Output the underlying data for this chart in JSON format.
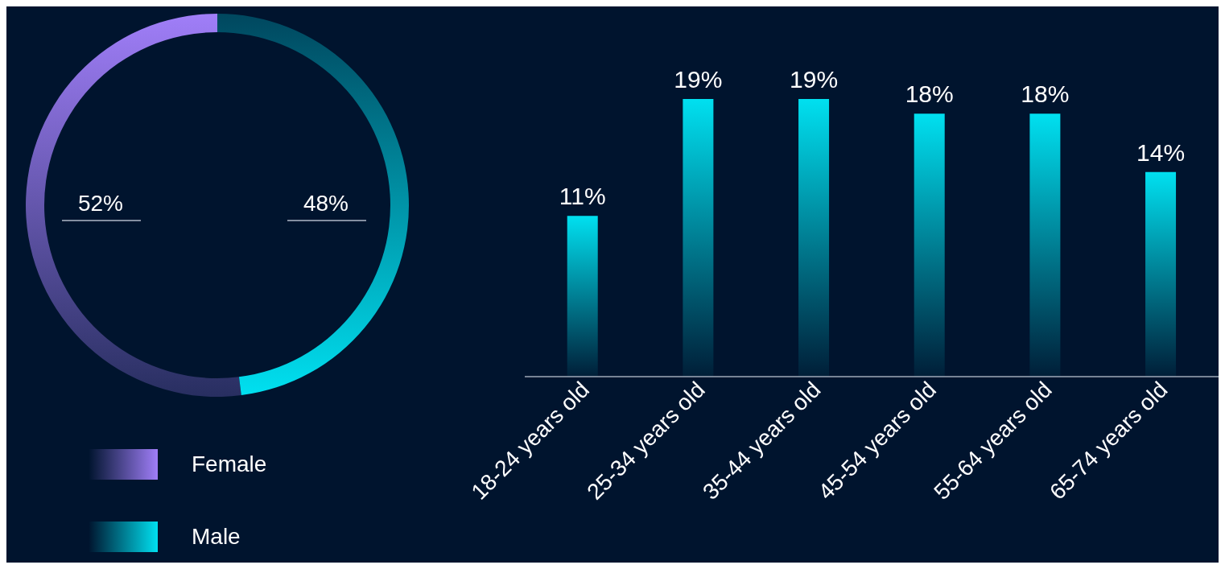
{
  "chart_data": [
    {
      "type": "donut",
      "categories": [
        "Female",
        "Male"
      ],
      "values": [
        52,
        48
      ],
      "colors": [
        "#a07ef8",
        "#00e0f0"
      ],
      "value_labels": [
        "52%",
        "48%"
      ],
      "legend": "bottom"
    },
    {
      "type": "bar",
      "categories": [
        "18-24 years old",
        "25-34 years old",
        "35-44 years old",
        "45-54 years old",
        "55-64 years old",
        "65-74 years old"
      ],
      "values": [
        11,
        19,
        19,
        18,
        18,
        14
      ],
      "color": "#00e0f0",
      "value_labels": [
        "11%",
        "19%",
        "19%",
        "18%",
        "18%",
        "14%"
      ]
    }
  ]
}
